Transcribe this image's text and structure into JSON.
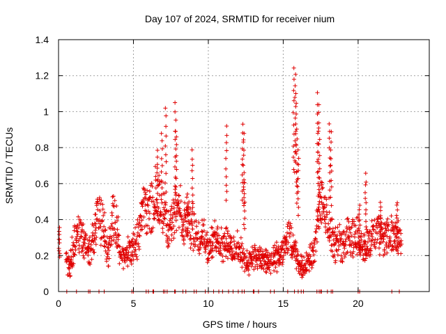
{
  "chart_data": {
    "type": "scatter",
    "title": "Day 107 of 2024, SRMTID for receiver nium",
    "xlabel": "GPS time / hours",
    "ylabel": "SRMTID / TECUs",
    "xlim": [
      0,
      24.75
    ],
    "ylim": [
      0,
      1.4
    ],
    "xticks": [
      0,
      5,
      10,
      15,
      20
    ],
    "xtick_labels": [
      "0",
      "5",
      "10",
      "15",
      "20"
    ],
    "yticks": [
      0,
      0.2,
      0.4,
      0.6,
      0.8,
      1,
      1.2,
      1.4
    ],
    "ytick_labels": [
      "0",
      "0.2",
      "0.4",
      "0.6",
      "0.8",
      "1",
      "1.2",
      "1.4"
    ],
    "grid": true,
    "marker": "+",
    "color": "#e00000",
    "series": [
      {
        "name": "SRMTID",
        "profile_x": [
          0,
          0.5,
          0.7,
          1.0,
          1.3,
          1.6,
          2.0,
          2.3,
          2.7,
          3.0,
          3.3,
          3.6,
          3.9,
          4.2,
          4.6,
          5.0,
          5.3,
          5.6,
          6.0,
          6.3,
          6.6,
          7.0,
          7.3,
          7.6,
          8.0,
          8.3,
          8.6,
          9.0,
          9.3,
          9.6,
          10.0,
          10.3,
          10.6,
          11.0,
          11.3,
          11.6,
          12.0,
          12.3,
          12.6,
          13.0,
          13.3,
          13.6,
          14.0,
          14.3,
          14.6,
          15.0,
          15.3,
          15.6,
          16.0,
          16.3,
          16.6,
          17.0,
          17.3,
          17.6,
          18.0,
          18.3,
          18.6,
          19.0,
          19.3,
          19.6,
          20.0,
          20.3,
          20.6,
          21.0,
          21.3,
          21.6,
          22.0,
          22.3,
          22.6,
          22.9
        ],
        "profile_y": [
          0.34,
          0.16,
          0.14,
          0.25,
          0.33,
          0.3,
          0.2,
          0.3,
          0.45,
          0.35,
          0.2,
          0.42,
          0.35,
          0.2,
          0.22,
          0.24,
          0.3,
          0.48,
          0.42,
          0.5,
          0.55,
          0.45,
          0.32,
          0.4,
          0.52,
          0.35,
          0.4,
          0.35,
          0.3,
          0.35,
          0.22,
          0.28,
          0.32,
          0.25,
          0.3,
          0.2,
          0.25,
          0.18,
          0.16,
          0.2,
          0.18,
          0.18,
          0.17,
          0.16,
          0.2,
          0.22,
          0.3,
          0.26,
          0.16,
          0.14,
          0.16,
          0.2,
          0.4,
          0.5,
          0.35,
          0.3,
          0.25,
          0.28,
          0.3,
          0.3,
          0.32,
          0.25,
          0.25,
          0.3,
          0.35,
          0.3,
          0.32,
          0.3,
          0.3,
          0.3
        ],
        "spikes": [
          {
            "x": 0.05,
            "y": 0.35
          },
          {
            "x": 6.6,
            "y": 0.78
          },
          {
            "x": 6.9,
            "y": 0.88
          },
          {
            "x": 7.15,
            "y": 1.02
          },
          {
            "x": 7.8,
            "y": 1.06
          },
          {
            "x": 7.85,
            "y": 0.9
          },
          {
            "x": 8.6,
            "y": 0.55
          },
          {
            "x": 8.95,
            "y": 0.78
          },
          {
            "x": 11.2,
            "y": 0.92
          },
          {
            "x": 12.3,
            "y": 0.93
          },
          {
            "x": 12.35,
            "y": 0.88
          },
          {
            "x": 12.4,
            "y": 0.63
          },
          {
            "x": 15.7,
            "y": 1.24
          },
          {
            "x": 15.8,
            "y": 1.2
          },
          {
            "x": 15.85,
            "y": 1.1
          },
          {
            "x": 15.9,
            "y": 0.9
          },
          {
            "x": 16.0,
            "y": 0.78
          },
          {
            "x": 17.3,
            "y": 1.1
          },
          {
            "x": 17.35,
            "y": 1.04
          },
          {
            "x": 17.4,
            "y": 0.9
          },
          {
            "x": 18.1,
            "y": 0.94
          },
          {
            "x": 18.2,
            "y": 0.88
          },
          {
            "x": 20.1,
            "y": 0.48
          },
          {
            "x": 20.5,
            "y": 0.65
          },
          {
            "x": 21.5,
            "y": 0.5
          },
          {
            "x": 22.6,
            "y": 0.5
          }
        ],
        "zero_x": [
          0.55,
          1.2,
          2.0,
          2.1,
          2.7,
          3.05,
          4.9,
          5.0,
          5.85,
          6.0,
          6.3,
          6.35,
          7.0,
          7.1,
          7.25,
          7.75,
          7.8,
          8.3,
          8.5,
          9.05,
          9.2,
          9.8,
          10.0,
          10.35,
          10.7,
          10.95,
          11.35,
          11.65,
          12.0,
          12.25,
          12.4,
          13.0,
          13.05,
          13.35,
          14.15,
          14.4,
          15.3,
          15.75,
          16.0,
          16.2,
          16.35,
          17.25,
          17.4,
          17.5,
          17.55,
          17.95,
          18.2,
          18.3,
          20.0,
          20.1,
          22.25,
          22.75
        ]
      }
    ]
  }
}
